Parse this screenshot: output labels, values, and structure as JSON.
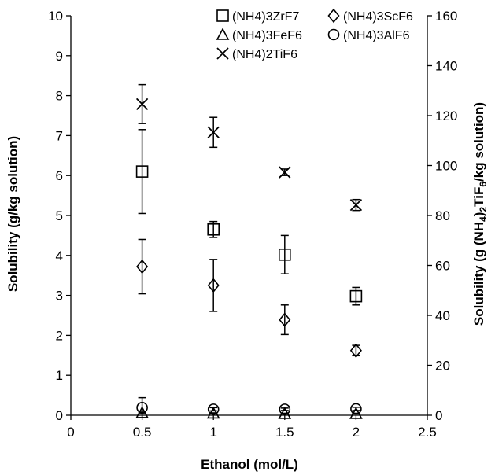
{
  "chart_data": {
    "type": "scatter",
    "xlabel": "Ethanol (mol/L)",
    "ylabel": "Solubility (g/kg solution)",
    "y2label_parts": [
      "Solubility (g (NH",
      "4",
      ")",
      "2",
      "TiF",
      "6",
      "/kg solution)"
    ],
    "xlim": [
      0,
      2.5
    ],
    "ylim": [
      0,
      10
    ],
    "y2lim": [
      0,
      160
    ],
    "x_ticks": [
      "0",
      "0.5",
      "1",
      "1.5",
      "2",
      "2.5"
    ],
    "y_ticks": [
      "0",
      "1",
      "2",
      "3",
      "4",
      "5",
      "6",
      "7",
      "8",
      "9",
      "10"
    ],
    "y2_ticks": [
      "0",
      "20",
      "40",
      "60",
      "80",
      "100",
      "120",
      "140",
      "160"
    ],
    "legend_position": "top-right",
    "series": [
      {
        "name": "(NH4)3ZrF7",
        "marker": "square",
        "axis": "left",
        "x": [
          0.5,
          1,
          1.5,
          2
        ],
        "y": [
          6.1,
          4.65,
          4.02,
          2.98
        ],
        "err": [
          1.05,
          0.2,
          0.48,
          0.22
        ]
      },
      {
        "name": "(NH4)3ScF6",
        "marker": "diamond",
        "axis": "left",
        "x": [
          0.5,
          1,
          1.5,
          2
        ],
        "y": [
          3.72,
          3.25,
          2.39,
          1.62
        ],
        "err": [
          0.68,
          0.65,
          0.37,
          0.13
        ]
      },
      {
        "name": "(NH4)3FeF6",
        "marker": "triangle",
        "axis": "left",
        "x": [
          0.5,
          1,
          1.5,
          2
        ],
        "y": [
          0.06,
          0.05,
          0.04,
          0.04
        ],
        "err": [
          0.02,
          0.01,
          0.01,
          0.01
        ]
      },
      {
        "name": "(NH4)3AlF6",
        "marker": "circle",
        "axis": "left",
        "x": [
          0.5,
          1,
          1.5,
          2
        ],
        "y": [
          0.19,
          0.15,
          0.15,
          0.16
        ],
        "err": [
          0.25,
          0.04,
          0.03,
          0.04
        ]
      },
      {
        "name": "(NH4)2TiF6",
        "marker": "cross",
        "axis": "right",
        "x": [
          0.5,
          1,
          1.5,
          2
        ],
        "y": [
          124.6,
          113.3,
          97.3,
          84.2
        ],
        "err": [
          7.8,
          6.0,
          1.3,
          2.2
        ]
      }
    ]
  }
}
